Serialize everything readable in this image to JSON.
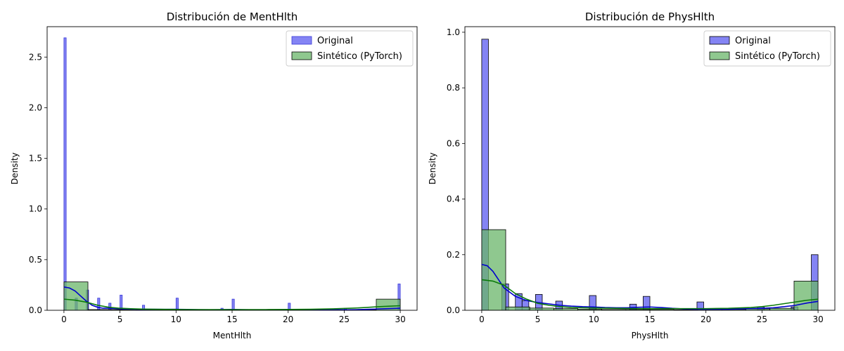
{
  "chart_data": [
    {
      "type": "bar",
      "title": "Distribución de MentHlth",
      "xlabel": "MentHlth",
      "ylabel": "Density",
      "xlim": [
        -1.5,
        31.5
      ],
      "ylim": [
        0,
        2.8
      ],
      "xticks": [
        "0",
        "5",
        "10",
        "15",
        "20",
        "25",
        "30"
      ],
      "yticks": [
        "0.0",
        "0.5",
        "1.0",
        "1.5",
        "2.0",
        "2.5"
      ],
      "legend": {
        "position": "top-right",
        "entries": [
          "Original",
          "Sintético (PyTorch)"
        ]
      },
      "series": [
        {
          "name": "Original",
          "color": "#5b5bf0",
          "edge_color": "#3a3ad8",
          "bars": [
            {
              "x0": 0.0,
              "x1": 0.2,
              "y": 2.69
            },
            {
              "x0": 1.0,
              "x1": 1.2,
              "y": 0.12
            },
            {
              "x0": 2.0,
              "x1": 2.2,
              "y": 0.2
            },
            {
              "x0": 3.0,
              "x1": 3.2,
              "y": 0.12
            },
            {
              "x0": 4.0,
              "x1": 4.2,
              "y": 0.07
            },
            {
              "x0": 5.0,
              "x1": 5.2,
              "y": 0.15
            },
            {
              "x0": 7.0,
              "x1": 7.2,
              "y": 0.05
            },
            {
              "x0": 10.0,
              "x1": 10.2,
              "y": 0.12
            },
            {
              "x0": 14.0,
              "x1": 14.2,
              "y": 0.02
            },
            {
              "x0": 15.0,
              "x1": 15.2,
              "y": 0.11
            },
            {
              "x0": 20.0,
              "x1": 20.2,
              "y": 0.07
            },
            {
              "x0": 25.0,
              "x1": 25.2,
              "y": 0.02
            },
            {
              "x0": 29.8,
              "x1": 30.0,
              "y": 0.26
            }
          ],
          "kde_color": "#0000cc",
          "kde": [
            [
              0,
              0.23
            ],
            [
              0.5,
              0.22
            ],
            [
              1,
              0.19
            ],
            [
              1.5,
              0.14
            ],
            [
              2,
              0.09
            ],
            [
              2.5,
              0.05
            ],
            [
              3,
              0.03
            ],
            [
              3.5,
              0.02
            ],
            [
              4,
              0.02
            ],
            [
              5,
              0.015
            ],
            [
              6,
              0.012
            ],
            [
              7,
              0.01
            ],
            [
              8,
              0.01
            ],
            [
              9,
              0.009
            ],
            [
              10,
              0.01
            ],
            [
              11,
              0.008
            ],
            [
              12,
              0.006
            ],
            [
              13,
              0.005
            ],
            [
              14,
              0.006
            ],
            [
              15,
              0.008
            ],
            [
              16,
              0.006
            ],
            [
              17,
              0.004
            ],
            [
              18,
              0.004
            ],
            [
              19,
              0.004
            ],
            [
              20,
              0.005
            ],
            [
              21,
              0.004
            ],
            [
              22,
              0.003
            ],
            [
              23,
              0.003
            ],
            [
              24,
              0.004
            ],
            [
              25,
              0.005
            ],
            [
              26,
              0.006
            ],
            [
              27,
              0.009
            ],
            [
              28,
              0.013
            ],
            [
              29,
              0.017
            ],
            [
              30,
              0.02
            ]
          ]
        },
        {
          "name": "Sintético (PyTorch)",
          "color": "#6ab56a",
          "edge_color": "#000000",
          "bars": [
            {
              "x0": 0.0,
              "x1": 2.14,
              "y": 0.28
            },
            {
              "x0": 2.14,
              "x1": 4.28,
              "y": 0.007
            },
            {
              "x0": 4.28,
              "x1": 6.43,
              "y": 0.007
            },
            {
              "x0": 6.43,
              "x1": 8.57,
              "y": 0.005
            },
            {
              "x0": 8.57,
              "x1": 10.71,
              "y": 0.004
            },
            {
              "x0": 10.71,
              "x1": 12.86,
              "y": 0.003
            },
            {
              "x0": 12.86,
              "x1": 15.0,
              "y": 0.003
            },
            {
              "x0": 15.0,
              "x1": 17.14,
              "y": 0.003
            },
            {
              "x0": 17.14,
              "x1": 19.28,
              "y": 0.002
            },
            {
              "x0": 19.28,
              "x1": 21.43,
              "y": 0.002
            },
            {
              "x0": 21.43,
              "x1": 23.57,
              "y": 0.002
            },
            {
              "x0": 23.57,
              "x1": 25.71,
              "y": 0.003
            },
            {
              "x0": 25.71,
              "x1": 27.86,
              "y": 0.004
            },
            {
              "x0": 27.86,
              "x1": 30.0,
              "y": 0.11
            }
          ],
          "kde_color": "#0a7a0a",
          "kde": [
            [
              0,
              0.11
            ],
            [
              1,
              0.1
            ],
            [
              2,
              0.08
            ],
            [
              3,
              0.05
            ],
            [
              4,
              0.03
            ],
            [
              5,
              0.02
            ],
            [
              6,
              0.015
            ],
            [
              7,
              0.012
            ],
            [
              8,
              0.01
            ],
            [
              9,
              0.009
            ],
            [
              10,
              0.008
            ],
            [
              12,
              0.007
            ],
            [
              14,
              0.007
            ],
            [
              16,
              0.007
            ],
            [
              18,
              0.007
            ],
            [
              20,
              0.008
            ],
            [
              22,
              0.01
            ],
            [
              24,
              0.014
            ],
            [
              26,
              0.022
            ],
            [
              27,
              0.028
            ],
            [
              28,
              0.035
            ],
            [
              29,
              0.04
            ],
            [
              30,
              0.045
            ]
          ]
        }
      ]
    },
    {
      "type": "bar",
      "title": "Distribución de PhysHlth",
      "xlabel": "PhysHlth",
      "ylabel": "Density",
      "xlim": [
        -1.5,
        31.5
      ],
      "ylim": [
        0,
        1.02
      ],
      "xticks": [
        "0",
        "5",
        "10",
        "15",
        "20",
        "25",
        "30"
      ],
      "yticks": [
        "0.0",
        "0.2",
        "0.4",
        "0.6",
        "0.8",
        "1.0"
      ],
      "legend": {
        "position": "top-right",
        "entries": [
          "Original",
          "Sintético (PyTorch)"
        ]
      },
      "series": [
        {
          "name": "Original",
          "color": "#5b5bf0",
          "edge_color": "#000000",
          "bars": [
            {
              "x0": 0.0,
              "x1": 0.6,
              "y": 0.975
            },
            {
              "x0": 1.8,
              "x1": 2.4,
              "y": 0.095
            },
            {
              "x0": 3.0,
              "x1": 3.6,
              "y": 0.06
            },
            {
              "x0": 3.6,
              "x1": 4.2,
              "y": 0.035
            },
            {
              "x0": 4.8,
              "x1": 5.4,
              "y": 0.057
            },
            {
              "x0": 6.6,
              "x1": 7.2,
              "y": 0.033
            },
            {
              "x0": 9.6,
              "x1": 10.2,
              "y": 0.053
            },
            {
              "x0": 13.2,
              "x1": 13.8,
              "y": 0.022
            },
            {
              "x0": 14.4,
              "x1": 15.0,
              "y": 0.05
            },
            {
              "x0": 19.2,
              "x1": 19.8,
              "y": 0.03
            },
            {
              "x0": 24.6,
              "x1": 25.2,
              "y": 0.012
            },
            {
              "x0": 27.6,
              "x1": 28.2,
              "y": 0.012
            },
            {
              "x0": 29.4,
              "x1": 30.0,
              "y": 0.2
            }
          ],
          "kde_color": "#0000cc",
          "kde": [
            [
              0,
              0.165
            ],
            [
              0.5,
              0.16
            ],
            [
              1,
              0.14
            ],
            [
              1.5,
              0.11
            ],
            [
              2,
              0.08
            ],
            [
              3,
              0.05
            ],
            [
              4,
              0.035
            ],
            [
              5,
              0.028
            ],
            [
              6,
              0.023
            ],
            [
              7,
              0.018
            ],
            [
              8,
              0.015
            ],
            [
              9,
              0.013
            ],
            [
              10,
              0.012
            ],
            [
              11,
              0.01
            ],
            [
              12,
              0.009
            ],
            [
              13,
              0.009
            ],
            [
              14,
              0.011
            ],
            [
              15,
              0.012
            ],
            [
              16,
              0.01
            ],
            [
              17,
              0.007
            ],
            [
              18,
              0.005
            ],
            [
              19,
              0.004
            ],
            [
              20,
              0.004
            ],
            [
              21,
              0.004
            ],
            [
              22,
              0.004
            ],
            [
              23,
              0.005
            ],
            [
              24,
              0.006
            ],
            [
              25,
              0.007
            ],
            [
              26,
              0.009
            ],
            [
              27,
              0.013
            ],
            [
              28,
              0.018
            ],
            [
              29,
              0.026
            ],
            [
              30,
              0.032
            ]
          ]
        },
        {
          "name": "Sintético (PyTorch)",
          "color": "#6ab56a",
          "edge_color": "#000000",
          "bars": [
            {
              "x0": 0.0,
              "x1": 2.14,
              "y": 0.29
            },
            {
              "x0": 2.14,
              "x1": 4.28,
              "y": 0.012
            },
            {
              "x0": 4.28,
              "x1": 6.43,
              "y": 0.008
            },
            {
              "x0": 6.43,
              "x1": 8.57,
              "y": 0.006
            },
            {
              "x0": 8.57,
              "x1": 10.71,
              "y": 0.004
            },
            {
              "x0": 10.71,
              "x1": 12.86,
              "y": 0.003
            },
            {
              "x0": 12.86,
              "x1": 15.0,
              "y": 0.003
            },
            {
              "x0": 15.0,
              "x1": 17.14,
              "y": 0.003
            },
            {
              "x0": 17.14,
              "x1": 19.28,
              "y": 0.002
            },
            {
              "x0": 19.28,
              "x1": 21.43,
              "y": 0.003
            },
            {
              "x0": 21.43,
              "x1": 23.57,
              "y": 0.003
            },
            {
              "x0": 23.57,
              "x1": 25.71,
              "y": 0.005
            },
            {
              "x0": 25.71,
              "x1": 27.86,
              "y": 0.007
            },
            {
              "x0": 27.86,
              "x1": 30.0,
              "y": 0.105
            }
          ],
          "kde_color": "#0a7a0a",
          "kde": [
            [
              0,
              0.11
            ],
            [
              1,
              0.105
            ],
            [
              2,
              0.09
            ],
            [
              3,
              0.06
            ],
            [
              4,
              0.04
            ],
            [
              5,
              0.025
            ],
            [
              6,
              0.018
            ],
            [
              7,
              0.013
            ],
            [
              8,
              0.01
            ],
            [
              10,
              0.008
            ],
            [
              12,
              0.007
            ],
            [
              14,
              0.006
            ],
            [
              16,
              0.006
            ],
            [
              18,
              0.006
            ],
            [
              20,
              0.006
            ],
            [
              22,
              0.007
            ],
            [
              24,
              0.01
            ],
            [
              25,
              0.013
            ],
            [
              26,
              0.018
            ],
            [
              27,
              0.024
            ],
            [
              28,
              0.03
            ],
            [
              29,
              0.036
            ],
            [
              30,
              0.04
            ]
          ]
        }
      ]
    }
  ]
}
